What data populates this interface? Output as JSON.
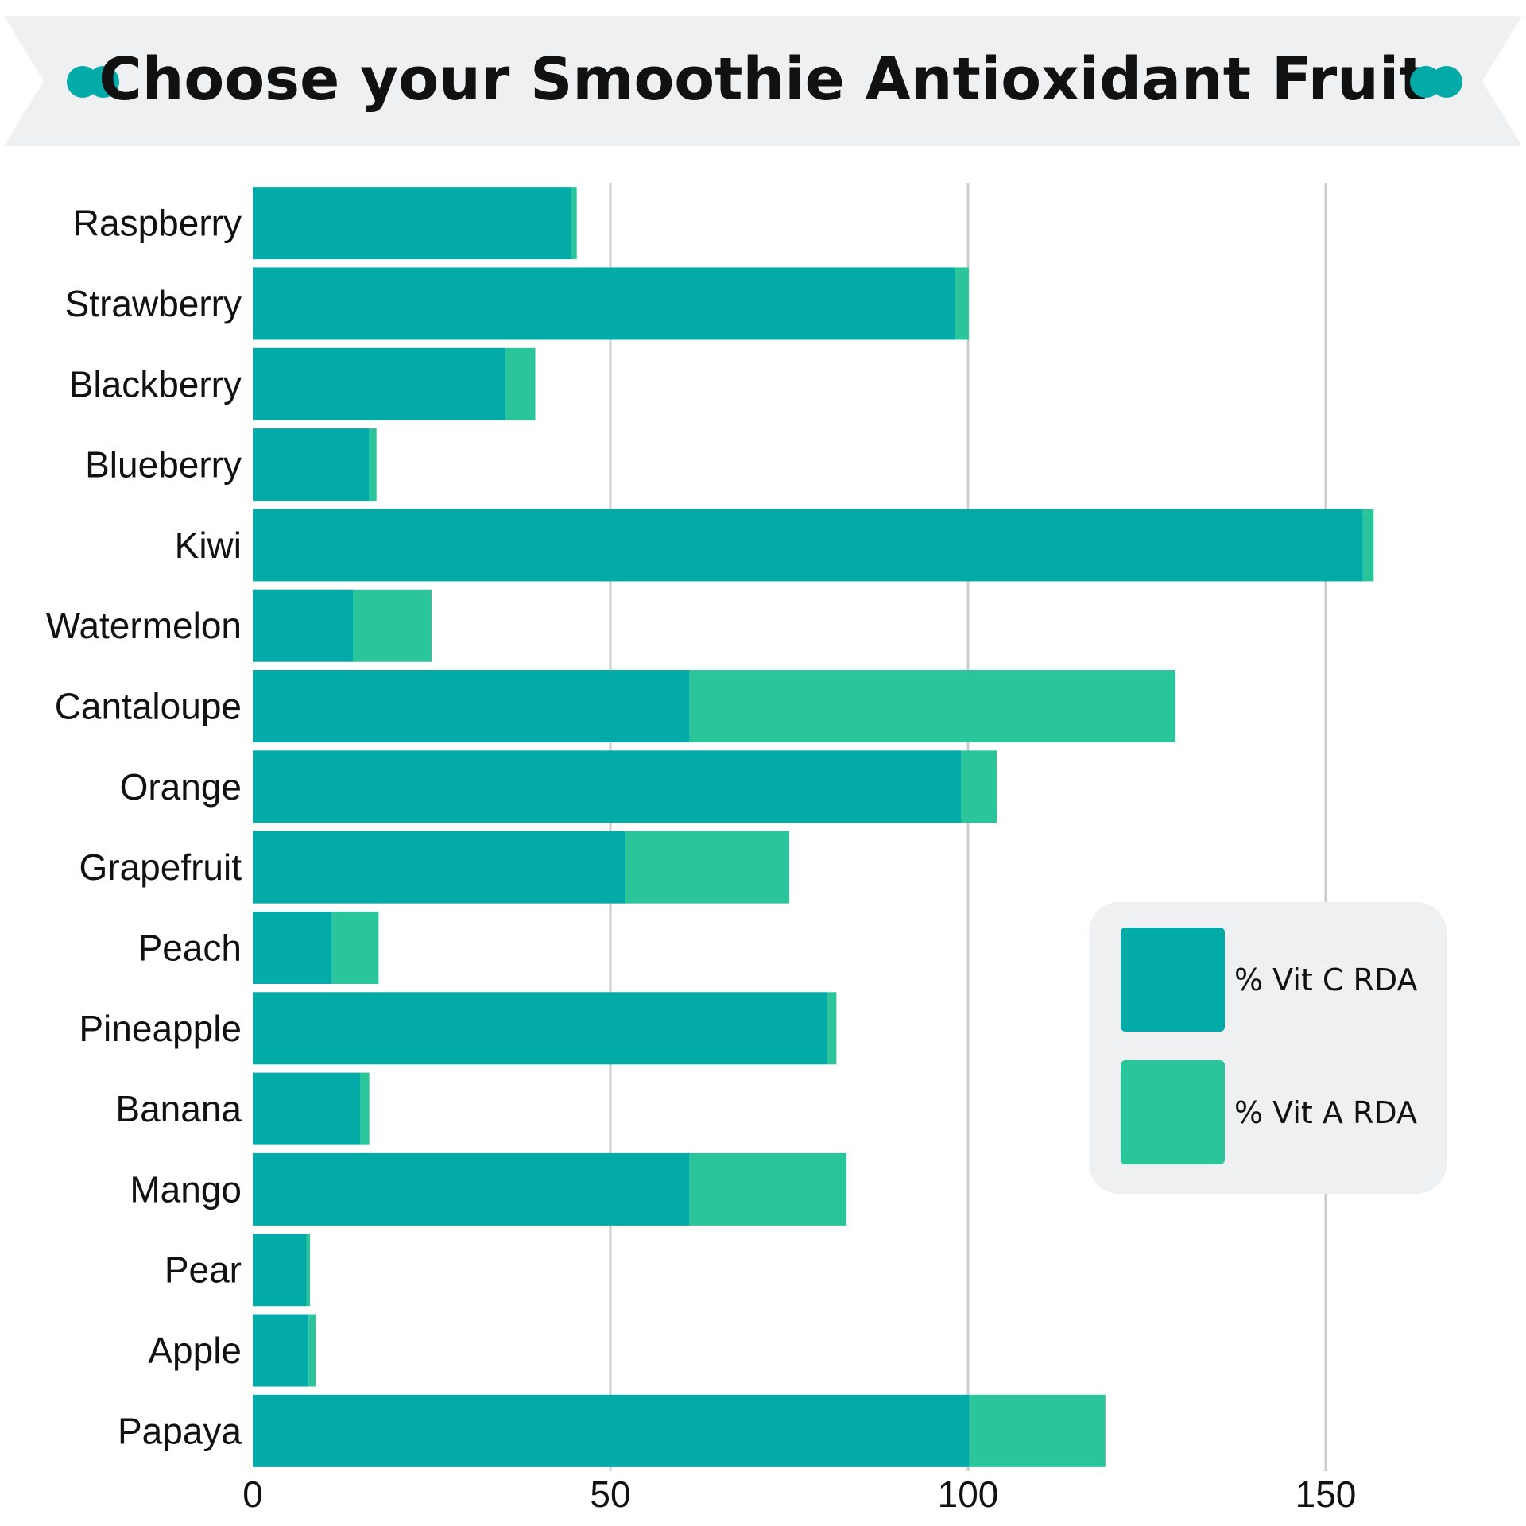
{
  "chart_data": {
    "type": "bar",
    "orientation": "horizontal",
    "stacked": true,
    "title": "Choose your Smoothie Antioxidant Fruit",
    "categories": [
      "Raspberry",
      "Strawberry",
      "Blackberry",
      "Blueberry",
      "Kiwi",
      "Watermelon",
      "Cantaloupe",
      "Orange",
      "Grapefruit",
      "Peach",
      "Pineapple",
      "Banana",
      "Mango",
      "Pear",
      "Apple",
      "Papaya"
    ],
    "series": [
      {
        "name": "% Vit C RDA",
        "color": "#02aaa8",
        "values": [
          44.5,
          98.2,
          35.3,
          16.3,
          155.2,
          14.0,
          61.0,
          99.0,
          52.0,
          11.0,
          80.3,
          15.0,
          61.0,
          7.5,
          7.8,
          100.2
        ]
      },
      {
        "name": "% Vit A RDA",
        "color": "#2bc59c",
        "values": [
          0.8,
          1.9,
          4.2,
          1.0,
          1.5,
          11.0,
          68.0,
          5.0,
          23.0,
          6.6,
          1.3,
          1.3,
          22.0,
          0.5,
          1.0,
          19.0
        ]
      }
    ],
    "xlim": [
      0,
      170
    ],
    "xticks": [
      0,
      50,
      100,
      150
    ],
    "grid": true,
    "legend_position": "right"
  },
  "colors": {
    "banner": "#eff0f2",
    "title_text": "#111111",
    "dots": "#02aaa8",
    "grid": "#cccccc",
    "legend_bg": "#eff0f2",
    "axis_text": "#111111"
  }
}
